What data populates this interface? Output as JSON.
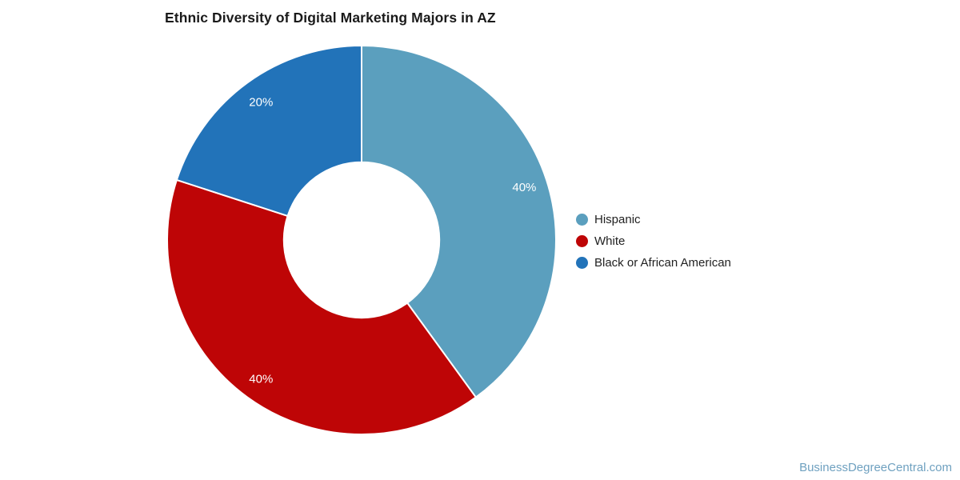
{
  "page": {
    "background": "#ffffff",
    "title_color": "#1a1a1a",
    "legend_text_color": "#222222"
  },
  "chart_data": {
    "type": "pie",
    "title": "Ethnic Diversity of Digital Marketing Majors in AZ",
    "labels": [
      "Hispanic",
      "White",
      "Black or African American"
    ],
    "values": [
      40,
      40,
      20
    ],
    "slice_labels": [
      "40%",
      "40%",
      "20%"
    ],
    "colors": [
      "#5B9FBE",
      "#BE0506",
      "#2273B9"
    ],
    "donut": true,
    "hole_ratio": 0.4,
    "start_angle_deg": 0,
    "direction": "clockwise",
    "slice_label_color": "#ffffff",
    "slice_divider_color": "#ffffff",
    "legend_position": "right",
    "legend_marker": "circle"
  },
  "watermark": {
    "text": "BusinessDegreeCentral.com",
    "color": "#6FA1C0"
  }
}
